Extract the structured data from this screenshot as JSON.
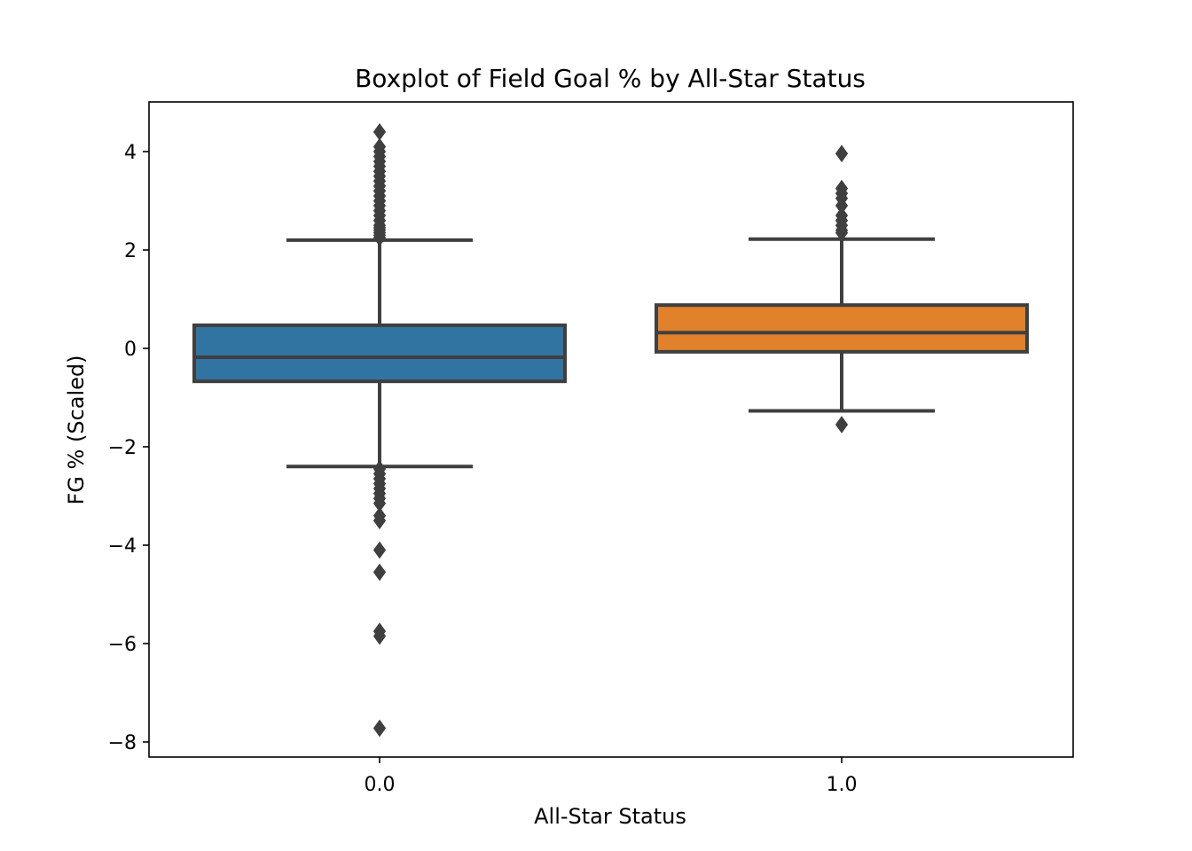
{
  "chart_data": {
    "type": "boxplot",
    "title": "Boxplot of Field Goal % by All-Star Status",
    "xlabel": "All-Star Status",
    "ylabel": "FG % (Scaled)",
    "ylim": [
      -8.3,
      5.0
    ],
    "yticks": [
      4,
      2,
      0,
      -2,
      -4,
      -6,
      -8
    ],
    "ytick_labels": [
      "4",
      "2",
      "0",
      "−2",
      "−4",
      "−6",
      "−8"
    ],
    "categories": [
      "0.0",
      "1.0"
    ],
    "grid": false,
    "boxes": [
      {
        "category": "0.0",
        "color": "#3274a1",
        "q1": -0.67,
        "median": -0.18,
        "q3": 0.47,
        "whisker_low": -2.4,
        "whisker_high": 2.2,
        "outliers": [
          4.4,
          4.1,
          4.0,
          3.9,
          3.8,
          3.7,
          3.6,
          3.5,
          3.4,
          3.3,
          3.2,
          3.1,
          3.0,
          2.9,
          2.8,
          2.7,
          2.6,
          2.5,
          2.45,
          2.4,
          2.35,
          2.3,
          2.25,
          -2.45,
          -2.55,
          -2.65,
          -2.75,
          -2.85,
          -2.95,
          -3.05,
          -3.15,
          -3.4,
          -3.5,
          -4.1,
          -4.55,
          -5.75,
          -5.85,
          -7.72
        ]
      },
      {
        "category": "1.0",
        "color": "#e1812c",
        "q1": -0.07,
        "median": 0.32,
        "q3": 0.88,
        "whisker_low": -1.27,
        "whisker_high": 2.22,
        "outliers": [
          3.96,
          3.25,
          3.15,
          3.05,
          2.9,
          2.7,
          2.6,
          2.5,
          2.4,
          2.35,
          -1.55
        ]
      }
    ],
    "line_color": "#3f3f3f"
  }
}
